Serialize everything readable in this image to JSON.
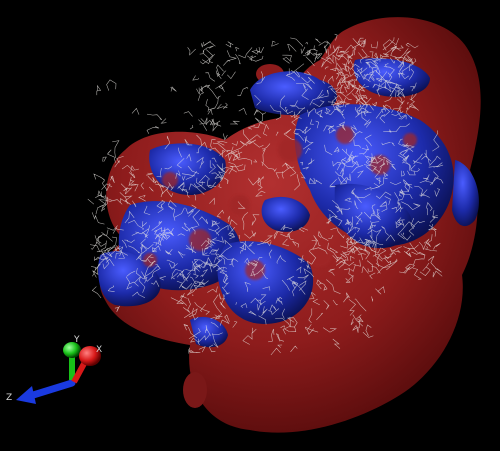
{
  "viewer": {
    "background": "#000000",
    "surface": {
      "positive_color": "#8e1c1c",
      "negative_color": "#1c2aa8"
    },
    "stick_model_color": "#e8e6e2"
  },
  "axes_triad": {
    "x_label": "X",
    "y_label": "Y",
    "z_label": "Z",
    "x_color": "#d81818",
    "y_color": "#18c018",
    "z_color": "#1a3ae0"
  }
}
